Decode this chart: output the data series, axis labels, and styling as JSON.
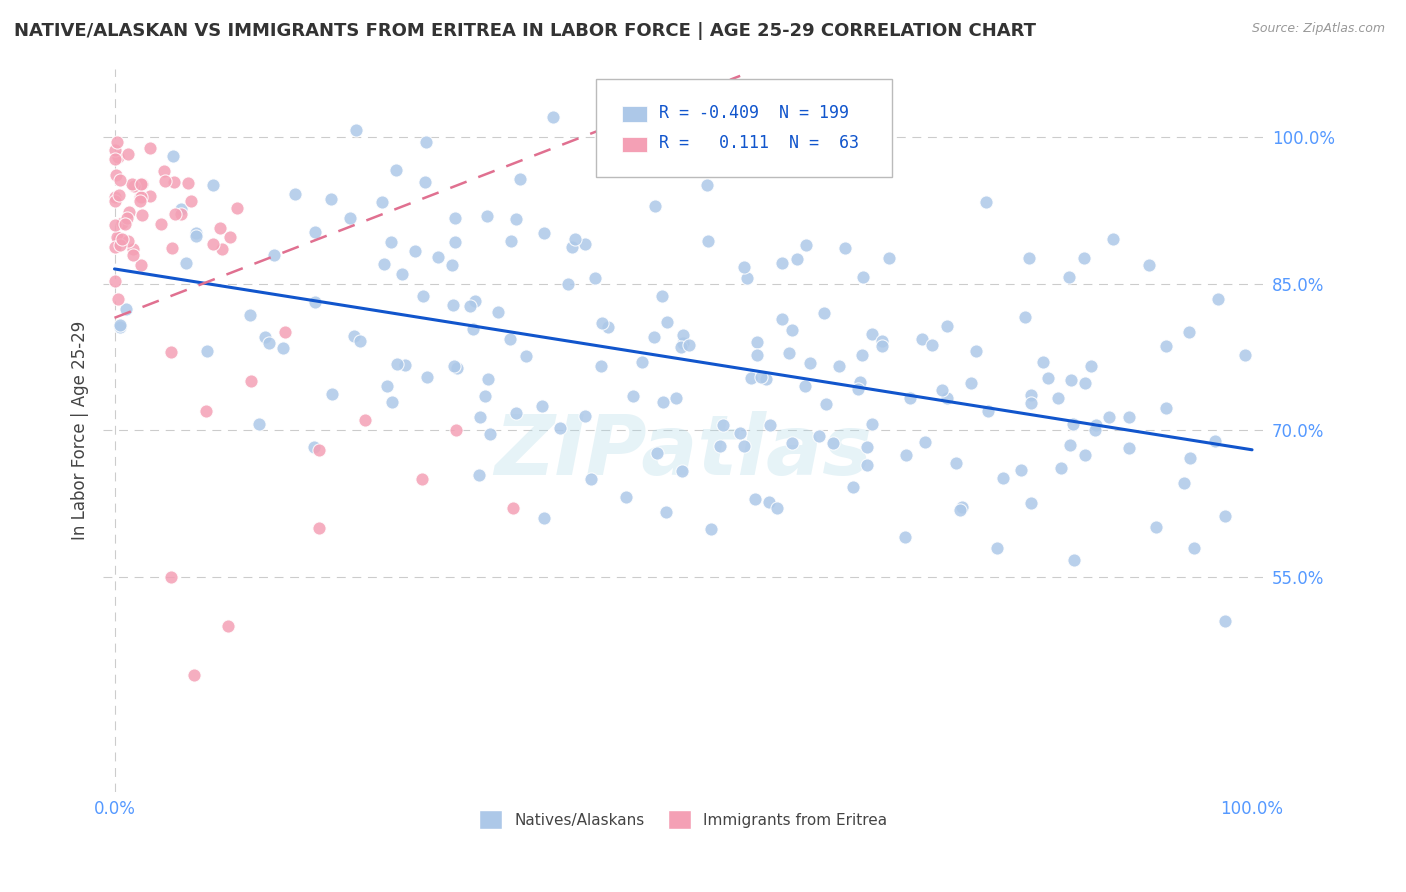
{
  "title": "NATIVE/ALASKAN VS IMMIGRANTS FROM ERITREA IN LABOR FORCE | AGE 25-29 CORRELATION CHART",
  "source": "Source: ZipAtlas.com",
  "ylabel": "In Labor Force | Age 25-29",
  "legend_R_blue": "-0.409",
  "legend_N_blue": "199",
  "legend_R_pink": "0.111",
  "legend_N_pink": "63",
  "blue_color": "#adc8e8",
  "pink_color": "#f4a0b5",
  "trend_blue_color": "#1155cc",
  "trend_pink_color": "#e07090",
  "watermark": "ZIPatlas",
  "background_color": "#ffffff",
  "grid_color": "#cccccc",
  "y_ticks": [
    0.55,
    0.7,
    0.85,
    1.0
  ],
  "y_tick_labels": [
    "55.0%",
    "70.0%",
    "85.0%",
    "100.0%"
  ],
  "tick_color": "#5599ff",
  "legend_label_blue": "Natives/Alaskans",
  "legend_label_pink": "Immigrants from Eritrea"
}
